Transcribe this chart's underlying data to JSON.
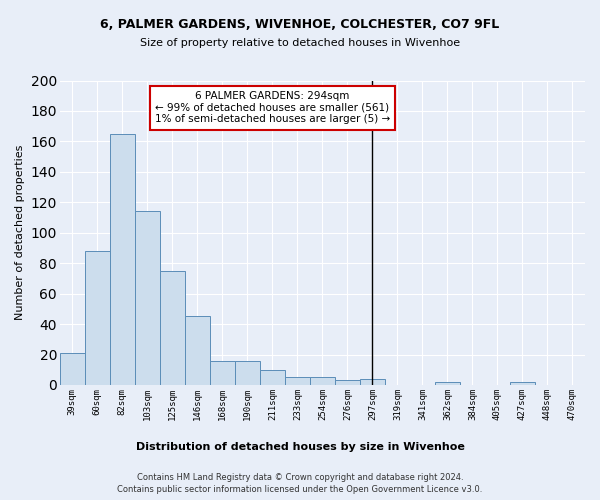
{
  "title1": "6, PALMER GARDENS, WIVENHOE, COLCHESTER, CO7 9FL",
  "title2": "Size of property relative to detached houses in Wivenhoe",
  "xlabel": "Distribution of detached houses by size in Wivenhoe",
  "ylabel": "Number of detached properties",
  "footer1": "Contains HM Land Registry data © Crown copyright and database right 2024.",
  "footer2": "Contains public sector information licensed under the Open Government Licence v3.0.",
  "categories": [
    "39sqm",
    "60sqm",
    "82sqm",
    "103sqm",
    "125sqm",
    "146sqm",
    "168sqm",
    "190sqm",
    "211sqm",
    "233sqm",
    "254sqm",
    "276sqm",
    "297sqm",
    "319sqm",
    "341sqm",
    "362sqm",
    "384sqm",
    "405sqm",
    "427sqm",
    "448sqm",
    "470sqm"
  ],
  "values": [
    21,
    88,
    165,
    114,
    75,
    45,
    16,
    16,
    10,
    5,
    5,
    3,
    4,
    0,
    0,
    2,
    0,
    0,
    2,
    0,
    0
  ],
  "bar_color": "#ccdded",
  "bar_edge_color": "#5b8db8",
  "vline_x": 12,
  "annotation_line1": "6 PALMER GARDENS: 294sqm",
  "annotation_line2": "← 99% of detached houses are smaller (561)",
  "annotation_line3": "1% of semi-detached houses are larger (5) →",
  "annotation_box_color": "#ffffff",
  "annotation_box_edge": "#cc0000",
  "ylim": [
    0,
    200
  ],
  "yticks": [
    0,
    20,
    40,
    60,
    80,
    100,
    120,
    140,
    160,
    180,
    200
  ],
  "background_color": "#e8eef8",
  "plot_background": "#e8eef8",
  "grid_color": "#ffffff"
}
